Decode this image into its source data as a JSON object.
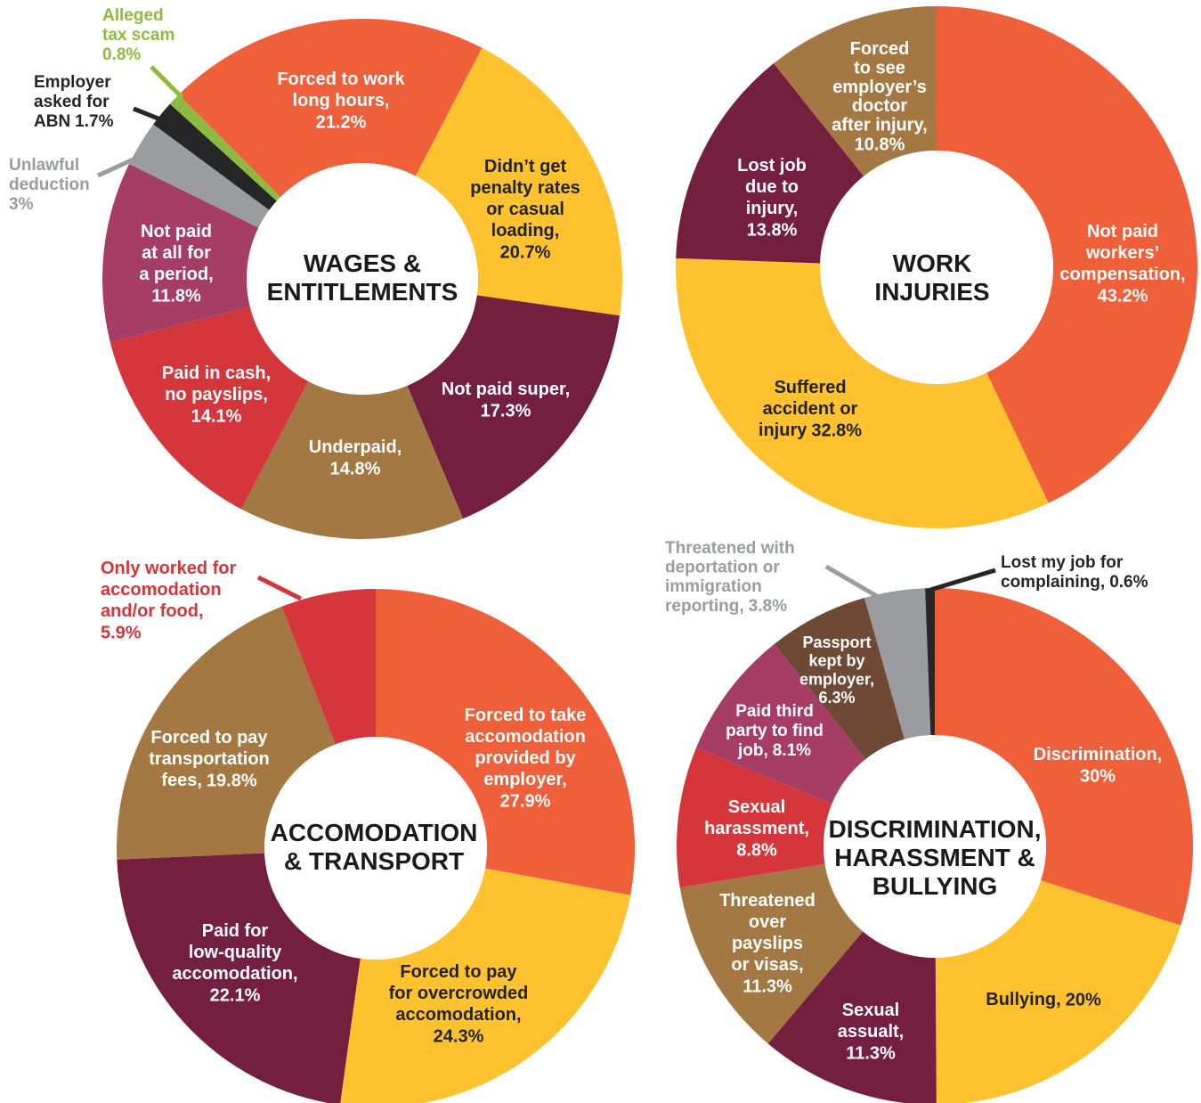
{
  "chart_data": [
    {
      "type": "pie",
      "donut": true,
      "title": "WAGES &\nENTITLEMENTS",
      "categories": [
        "Forced to work\nlong hours,",
        "Didn’t get\npenalty rates\nor casual\nloading,",
        "Not paid super,",
        "Underpaid,",
        "Paid in cash,\nno payslips,",
        "Not paid\nat all for\na period,",
        "Unlawful\ndeduction",
        "Employer\nasked for\nABN",
        "Alleged\ntax scam"
      ],
      "values": [
        21.2,
        20.7,
        17.3,
        14.8,
        14.1,
        11.8,
        3,
        1.7,
        0.8
      ],
      "value_labels": [
        "21.2%",
        "20.7%",
        "17.3%",
        "14.8%",
        "14.1%",
        "11.8%",
        "3%",
        "1.7%",
        "0.8%"
      ],
      "colors": [
        "#ef5f3a",
        "#fdc22e",
        "#731f3d",
        "#a47843",
        "#d5363c",
        "#a63d64",
        "#9a9ca0",
        "#262626",
        "#8dbb40"
      ]
    },
    {
      "type": "pie",
      "donut": true,
      "title": "WORK\nINJURIES",
      "categories": [
        "Not paid\nworkers’\ncompensation,",
        "Suffered\naccident or\ninjury",
        "Lost job\ndue to\ninjury,",
        "Forced\nto see\nemployer’s\ndoctor\nafter injury,"
      ],
      "values": [
        43.2,
        32.8,
        13.8,
        10.8
      ],
      "value_labels": [
        "43.2%",
        "32.8%",
        "13.8%",
        "10.8%"
      ],
      "colors": [
        "#ef5f3a",
        "#fdc22e",
        "#731f3d",
        "#a47843"
      ]
    },
    {
      "type": "pie",
      "donut": true,
      "title": "ACCOMODATION\n& TRANSPORT",
      "categories": [
        "Forced to take\naccomodation\nprovided by\nemployer,",
        "Forced to pay\nfor overcrowded\naccomodation,",
        "Paid for\nlow-quality\naccomodation,",
        "Forced to pay\ntransportation\nfees,",
        "Only worked for\naccomodation\nand/or food,"
      ],
      "values": [
        27.9,
        24.3,
        22.1,
        19.8,
        5.9
      ],
      "value_labels": [
        "27.9%",
        "24.3%",
        "22.1%",
        "19.8%",
        "5.9%"
      ],
      "colors": [
        "#ef5f3a",
        "#fdc22e",
        "#731f3d",
        "#a47843",
        "#d5363c"
      ]
    },
    {
      "type": "pie",
      "donut": true,
      "title": "DISCRIMINATION,\nHARASSMENT &\nBULLYING",
      "categories": [
        "Discrimination,",
        "Bullying,",
        "Sexual\nassualt,",
        "Threatened\nover\npayslips\nor visas,",
        "Sexual\nharassment,",
        "Paid third\nparty to find\njob,",
        "Passport\nkept by\nemployer,",
        "Threatened with\ndeportation or\nimmigration\nreporting,",
        "Lost my job for\ncomplaining,"
      ],
      "values": [
        30,
        20,
        11.3,
        11.3,
        8.8,
        8.1,
        6.3,
        3.8,
        0.6
      ],
      "value_labels": [
        "30%",
        "20%",
        "11.3%",
        "11.3%",
        "8.8%",
        "8.1%",
        "6.3%",
        "3.8%",
        "0.6%"
      ],
      "colors": [
        "#ef5f3a",
        "#fdc22e",
        "#731f3d",
        "#a47843",
        "#d5363c",
        "#a63d64",
        "#6e4a36",
        "#9a9ca0",
        "#262626"
      ]
    }
  ]
}
